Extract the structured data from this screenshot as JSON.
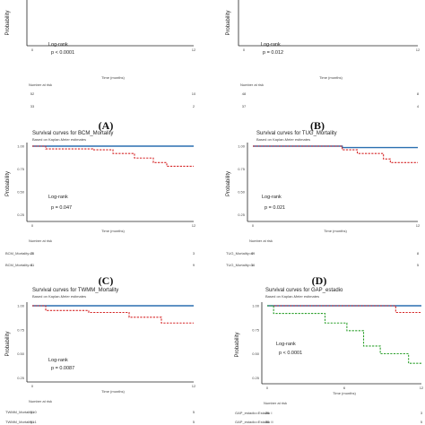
{
  "colors": {
    "strong": "#2a6fb0",
    "weak": "#d62728",
    "green": "#2ca02c",
    "axis": "#222222"
  },
  "chart_data": [
    {
      "type": "line",
      "panel": "top-left",
      "panel_label": "",
      "title": "",
      "subtitle": "",
      "xlabel": "Time (months)",
      "ylabel": "Probability",
      "xlim": [
        0,
        12
      ],
      "ylim": [
        0.0,
        1.0
      ],
      "x_ticks": [
        "0",
        "12"
      ],
      "y_ticks": [
        "0.75"
      ],
      "logrank_label": "Log-rank",
      "p_label": "p < 0.0001",
      "risk_title": "Number at risk",
      "series": [
        {
          "name": "",
          "color": "#d62728",
          "dashed": true,
          "steps": [
            [
              0,
              0.8
            ],
            [
              1.5,
              0.8
            ],
            [
              4.5,
              0.76
            ],
            [
              5.3,
              0.73
            ],
            [
              6.8,
              0.7
            ],
            [
              7.3,
              0.66
            ],
            [
              8.0,
              0.62
            ],
            [
              12,
              0.62
            ]
          ],
          "risk_label": "",
          "risk": [
            "33",
            "2"
          ]
        }
      ],
      "risk_rows": [
        {
          "label": "",
          "color": "#2a6fb0",
          "values": [
            "52",
            "10"
          ]
        },
        {
          "label": "",
          "color": "#d62728",
          "values": [
            "33",
            "2"
          ]
        }
      ]
    },
    {
      "type": "line",
      "panel": "top-right",
      "panel_label": "",
      "title": "",
      "subtitle": "",
      "xlabel": "Time (months)",
      "ylabel": "Probability",
      "xlim": [
        0,
        12
      ],
      "ylim": [
        0.0,
        1.0
      ],
      "x_ticks": [
        "0",
        "12"
      ],
      "y_ticks": [],
      "logrank_label": "Log-rank",
      "p_label": "p = 0.012",
      "risk_title": "Number at risk",
      "series": [
        {
          "name": "",
          "color": "#d62728",
          "dashed": true,
          "steps": [
            [
              0,
              0.8
            ],
            [
              4.0,
              0.8
            ],
            [
              5.0,
              0.76
            ],
            [
              6.5,
              0.72
            ],
            [
              7.3,
              0.68
            ],
            [
              8.5,
              0.64
            ],
            [
              12,
              0.64
            ]
          ],
          "risk_label": "",
          "risk": [
            "37",
            "4"
          ]
        }
      ],
      "risk_rows": [
        {
          "label": "",
          "color": "#2a6fb0",
          "values": [
            "48",
            "8"
          ]
        },
        {
          "label": "",
          "color": "#d62728",
          "values": [
            "37",
            "4"
          ]
        }
      ]
    },
    {
      "type": "line",
      "panel": "middle-left",
      "panel_label": "(A)",
      "title": "Survival curves for BCM_Mortality",
      "subtitle": "Based on Kaplan-Meier estimates",
      "xlabel": "Time (months)",
      "ylabel": "Probability",
      "xlim": [
        0,
        12
      ],
      "ylim": [
        0.0,
        1.0
      ],
      "x_ticks": [
        "0",
        "12"
      ],
      "y_ticks": [
        "1.00",
        "0.75",
        "0.50",
        "0.25",
        "0.00"
      ],
      "logrank_label": "Log-rank",
      "p_label": "p = 0.047",
      "risk_title": "Number at risk",
      "series": [
        {
          "name": "",
          "color": "#2a6fb0",
          "dashed": false,
          "steps": [
            [
              0,
              1.0
            ],
            [
              12,
              1.0
            ]
          ]
        },
        {
          "name": "",
          "color": "#d62728",
          "dashed": true,
          "steps": [
            [
              0,
              1.0
            ],
            [
              1.0,
              0.97
            ],
            [
              4.5,
              0.96
            ],
            [
              6.0,
              0.92
            ],
            [
              7.6,
              0.87
            ],
            [
              9.0,
              0.82
            ],
            [
              10.0,
              0.78
            ],
            [
              12,
              0.78
            ]
          ]
        }
      ],
      "risk_rows": [
        {
          "label": "BCM_Mortality=0",
          "color": "#2a6fb0",
          "values": [
            "25",
            "3"
          ]
        },
        {
          "label": "BCM_Mortality=1",
          "color": "#d62728",
          "values": [
            "61",
            "9"
          ]
        }
      ]
    },
    {
      "type": "line",
      "panel": "middle-right",
      "panel_label": "(B)",
      "title": "Survival curves for TUG_Mortality",
      "subtitle": "Based on Kaplan-Meier estimates",
      "xlabel": "Time (months)",
      "ylabel": "Probability",
      "xlim": [
        0,
        12
      ],
      "ylim": [
        0.0,
        1.0
      ],
      "x_ticks": [
        "0",
        "12"
      ],
      "y_ticks": [
        "1.00",
        "0.75",
        "0.50",
        "0.25",
        "0.00"
      ],
      "logrank_label": "Log-rank",
      "p_label": "p = 0.021",
      "risk_title": "Number at risk",
      "series": [
        {
          "name": "",
          "color": "#2a6fb0",
          "dashed": false,
          "steps": [
            [
              0,
              1.0
            ],
            [
              6.5,
              1.0
            ],
            [
              6.5,
              0.985
            ],
            [
              12,
              0.985
            ]
          ]
        },
        {
          "name": "",
          "color": "#d62728",
          "dashed": true,
          "steps": [
            [
              0,
              1.0
            ],
            [
              6.5,
              0.96
            ],
            [
              7.6,
              0.92
            ],
            [
              9.5,
              0.86
            ],
            [
              10.0,
              0.82
            ],
            [
              12,
              0.82
            ]
          ]
        }
      ],
      "risk_rows": [
        {
          "label": "TUG_Mortality=0",
          "color": "#2a6fb0",
          "values": [
            "49",
            "8"
          ]
        },
        {
          "label": "TUG_Mortality=1",
          "color": "#d62728",
          "values": [
            "36",
            "5"
          ]
        }
      ]
    },
    {
      "type": "line",
      "panel": "bottom-left",
      "panel_label": "(C)",
      "title": "Survival curves for TWMM_Mortality",
      "subtitle": "Based on Kaplan-Meier estimates",
      "xlabel": "Time (months)",
      "ylabel": "Probability",
      "xlim": [
        0,
        12
      ],
      "ylim": [
        0.0,
        1.0
      ],
      "x_ticks": [
        "0",
        "12"
      ],
      "y_ticks": [
        "1.00",
        "0.75",
        "0.50",
        "0.25",
        "0.00"
      ],
      "logrank_label": "Log-rank",
      "p_label": "p = 0.0087",
      "risk_title": "Number at risk",
      "series": [
        {
          "name": "",
          "color": "#2a6fb0",
          "dashed": false,
          "steps": [
            [
              0,
              1.0
            ],
            [
              12,
              1.0
            ]
          ]
        },
        {
          "name": "",
          "color": "#d62728",
          "dashed": true,
          "steps": [
            [
              0,
              1.0
            ],
            [
              1.0,
              0.95
            ],
            [
              4.2,
              0.93
            ],
            [
              7.2,
              0.88
            ],
            [
              9.6,
              0.82
            ],
            [
              12,
              0.82
            ]
          ]
        }
      ],
      "risk_rows": [
        {
          "label": "TWMM_Mortality=0",
          "color": "#2a6fb0",
          "values": [
            "31",
            "5"
          ]
        },
        {
          "label": "TWMM_Mortality=1",
          "color": "#d62728",
          "values": [
            "51",
            "5"
          ]
        }
      ]
    },
    {
      "type": "line",
      "panel": "bottom-right",
      "panel_label": "(D)",
      "title": "Survival curves for GAP_estadio",
      "subtitle": "Based on Kaplan-Meier estimates",
      "xlabel": "Time (months)",
      "ylabel": "Probability",
      "xlim": [
        0,
        12
      ],
      "ylim": [
        0.0,
        1.0
      ],
      "x_ticks": [
        "0",
        "6",
        "12"
      ],
      "y_ticks": [
        "1.00",
        "0.75",
        "0.50",
        "0.25",
        "0.00"
      ],
      "logrank_label": "Log-rank",
      "p_label": "p < 0.0001",
      "risk_title": "Number at risk",
      "series": [
        {
          "name": "",
          "color": "#2a6fb0",
          "dashed": false,
          "steps": [
            [
              0,
              1.0
            ],
            [
              12,
              1.0
            ]
          ]
        },
        {
          "name": "",
          "color": "#d62728",
          "dashed": true,
          "steps": [
            [
              0,
              1.0
            ],
            [
              10.0,
              1.0
            ],
            [
              10.0,
              0.93
            ],
            [
              12,
              0.93
            ]
          ]
        },
        {
          "name": "",
          "color": "#2ca02c",
          "dashed": true,
          "steps": [
            [
              0,
              1.0
            ],
            [
              0.5,
              0.92
            ],
            [
              4.5,
              0.82
            ],
            [
              6.2,
              0.74
            ],
            [
              7.5,
              0.58
            ],
            [
              8.8,
              0.5
            ],
            [
              11.0,
              0.4
            ],
            [
              12,
              0.4
            ]
          ]
        }
      ],
      "risk_rows": [
        {
          "label": "GAP_estadio=Estadio I",
          "color": "#2a6fb0",
          "values": [
            "26",
            "3"
          ]
        },
        {
          "label": "GAP_estadio=Estadio II",
          "color": "#d62728",
          "values": [
            "38",
            "5"
          ]
        }
      ]
    }
  ]
}
